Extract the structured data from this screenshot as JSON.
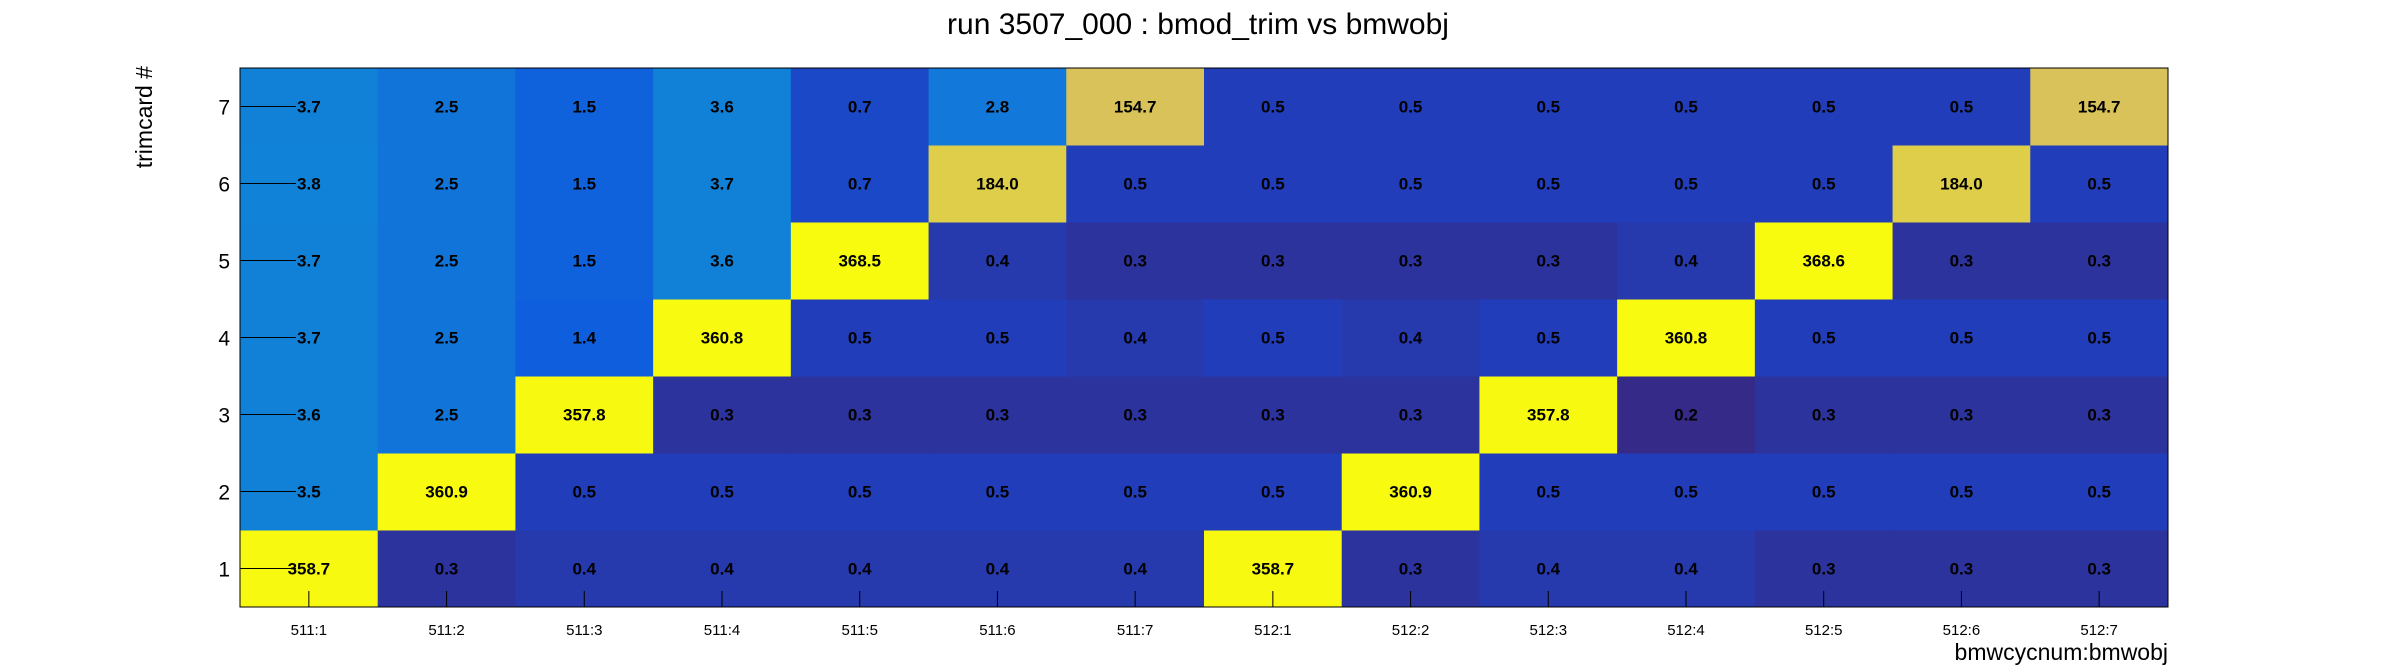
{
  "chart_data": {
    "type": "heatmap",
    "title": "run 3507_000 : bmod_trim vs bmwobj",
    "xlabel": "bmwcycnum:bmwobj",
    "ylabel": "trimcard #",
    "x_categories": [
      "511:1",
      "511:2",
      "511:3",
      "511:4",
      "511:5",
      "511:6",
      "511:7",
      "512:1",
      "512:2",
      "512:3",
      "512:4",
      "512:5",
      "512:6",
      "512:7"
    ],
    "y_categories": [
      "1",
      "2",
      "3",
      "4",
      "5",
      "6",
      "7"
    ],
    "values": [
      [
        358.7,
        0.3,
        0.4,
        0.4,
        0.4,
        0.4,
        0.4,
        358.7,
        0.3,
        0.4,
        0.4,
        0.3,
        0.3,
        0.3
      ],
      [
        3.5,
        360.9,
        0.5,
        0.5,
        0.5,
        0.5,
        0.5,
        0.5,
        360.9,
        0.5,
        0.5,
        0.5,
        0.5,
        0.5
      ],
      [
        3.6,
        2.5,
        357.8,
        0.3,
        0.3,
        0.3,
        0.3,
        0.3,
        0.3,
        357.8,
        0.2,
        0.3,
        0.3,
        0.3
      ],
      [
        3.7,
        2.5,
        1.4,
        360.8,
        0.5,
        0.5,
        0.4,
        0.5,
        0.4,
        0.5,
        360.8,
        0.5,
        0.5,
        0.5
      ],
      [
        3.7,
        2.5,
        1.5,
        3.6,
        368.5,
        0.4,
        0.3,
        0.3,
        0.3,
        0.3,
        0.4,
        368.6,
        0.3,
        0.3
      ],
      [
        3.8,
        2.5,
        1.5,
        3.7,
        0.7,
        184.0,
        0.5,
        0.5,
        0.5,
        0.5,
        0.5,
        0.5,
        184.0,
        0.5
      ],
      [
        3.7,
        2.5,
        1.5,
        3.6,
        0.7,
        2.8,
        154.7,
        0.5,
        0.5,
        0.5,
        0.5,
        0.5,
        0.5,
        154.7
      ]
    ],
    "colormap": "parula",
    "color_scale": "log",
    "grid": false,
    "legend": "none"
  }
}
